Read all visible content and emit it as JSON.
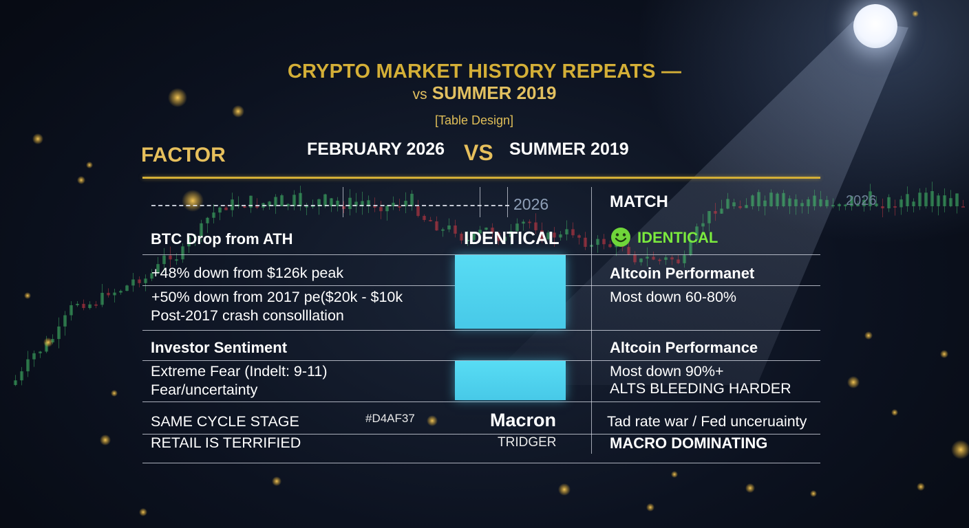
{
  "header": {
    "title_line1": "CRYPTO MARKET HISTORY REPEATS —",
    "title_line2_vs": "vs",
    "title_line2_rest": "SUMMER 2019",
    "subtitle": "[Table Design]"
  },
  "columns": {
    "factor": "FACTOR",
    "left": "FEBRUARY 2026",
    "vs": "VS",
    "right": "SUMMER 2019",
    "match": "MATCH"
  },
  "labels": {
    "year_marker": "2026",
    "year_marker_right": "2026"
  },
  "rows": {
    "btc_drop": {
      "factor": "BTC Drop from ATH",
      "match_center": "IDENTICAL",
      "match_badge": "IDENTICAL",
      "line1": "+48% down from $126k peak",
      "line2": "+50% down from 2017 pe($20k - $10k",
      "line3": "Post-2017 crash consolllation"
    },
    "altcoin_1": {
      "title": "Altcoin Performanet",
      "detail": "Most down 60-80%"
    },
    "sentiment": {
      "factor": "Investor Sentiment",
      "line1": "Extreme Fear (Indelt: 9-11)",
      "line2": "Fear/uncertainty"
    },
    "altcoin_2": {
      "title": "Altcoin Performance",
      "line1": "Most down 90%+",
      "line2": "ALTS BLEEDING HARDER"
    },
    "cycle": {
      "line1": "SAME CYCLE STAGE",
      "line2": "RETAIL IS TERRIFIED",
      "hex": "#D4AF37",
      "macron": "Macron",
      "trigger": "TRIDGER",
      "right1": "Tad rate war / Fed unceruainty",
      "right2": "MACRO DOMINATING"
    }
  },
  "colors": {
    "gold": "#D4AF37",
    "cyan": "#4FD3EE",
    "badge_green": "#7BEA3E",
    "background": "#0c1220"
  }
}
